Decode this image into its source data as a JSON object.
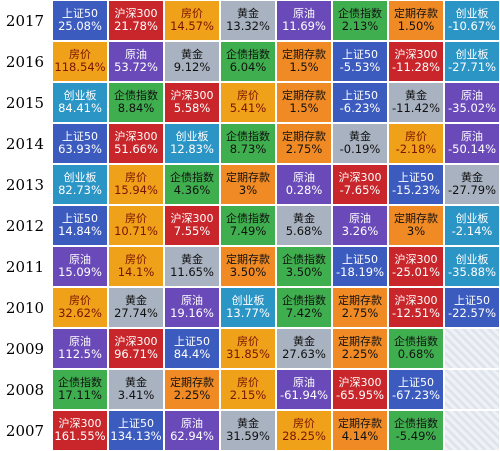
{
  "colors": {
    "上证50": "#3b5bbf",
    "沪深300": "#c8262a",
    "房价": "#f0a11a",
    "黄金": "#a9b2c0",
    "原油": "#6a4ab8",
    "企债指数": "#3fae4e",
    "定期存款": "#f08a24",
    "创业板": "#2b95c6",
    "empty": "#e7ebf2"
  },
  "text_colors": {
    "上证50": "#ffffff",
    "沪深300": "#ffffff",
    "房价": "#7a1300",
    "黄金": "#111111",
    "原油": "#ffffff",
    "企债指数": "#111111",
    "定期存款": "#111111",
    "创业板": "#ffffff"
  },
  "rows": [
    {
      "year": "2017",
      "cells": [
        {
          "name": "上证50",
          "value": "25.08%"
        },
        {
          "name": "沪深300",
          "value": "21.78%"
        },
        {
          "name": "房价",
          "value": "14.57%"
        },
        {
          "name": "黄金",
          "value": "13.32%"
        },
        {
          "name": "原油",
          "value": "11.69%"
        },
        {
          "name": "企债指数",
          "value": "2.13%"
        },
        {
          "name": "定期存款",
          "value": "1.50%"
        },
        {
          "name": "创业板",
          "value": "-10.67%"
        }
      ]
    },
    {
      "year": "2016",
      "cells": [
        {
          "name": "房价",
          "value": "118.54%"
        },
        {
          "name": "原油",
          "value": "53.72%"
        },
        {
          "name": "黄金",
          "value": "9.12%"
        },
        {
          "name": "企债指数",
          "value": "6.04%"
        },
        {
          "name": "定期存款",
          "value": "1.5%"
        },
        {
          "name": "上证50",
          "value": "-5.53%"
        },
        {
          "name": "沪深300",
          "value": "-11.28%"
        },
        {
          "name": "创业板",
          "value": "-27.71%"
        }
      ]
    },
    {
      "year": "2015",
      "cells": [
        {
          "name": "创业板",
          "value": "84.41%"
        },
        {
          "name": "企债指数",
          "value": "8.84%"
        },
        {
          "name": "沪深300",
          "value": "5.58%"
        },
        {
          "name": "房价",
          "value": "5.41%"
        },
        {
          "name": "定期存款",
          "value": "1.5%"
        },
        {
          "name": "上证50",
          "value": "-6.23%"
        },
        {
          "name": "黄金",
          "value": "-11.42%"
        },
        {
          "name": "原油",
          "value": "-35.02%"
        }
      ]
    },
    {
      "year": "2014",
      "cells": [
        {
          "name": "上证50",
          "value": "63.93%"
        },
        {
          "name": "沪深300",
          "value": "51.66%"
        },
        {
          "name": "创业板",
          "value": "12.83%"
        },
        {
          "name": "企债指数",
          "value": "8.73%"
        },
        {
          "name": "定期存款",
          "value": "2.75%"
        },
        {
          "name": "黄金",
          "value": "-0.19%"
        },
        {
          "name": "房价",
          "value": "-2.18%"
        },
        {
          "name": "原油",
          "value": "-50.14%"
        }
      ]
    },
    {
      "year": "2013",
      "cells": [
        {
          "name": "创业板",
          "value": "82.73%"
        },
        {
          "name": "房价",
          "value": "15.94%"
        },
        {
          "name": "企债指数",
          "value": "4.36%"
        },
        {
          "name": "定期存款",
          "value": "3%"
        },
        {
          "name": "原油",
          "value": "0.28%"
        },
        {
          "name": "沪深300",
          "value": "-7.65%"
        },
        {
          "name": "上证50",
          "value": "-15.23%"
        },
        {
          "name": "黄金",
          "value": "-27.79%"
        }
      ]
    },
    {
      "year": "2012",
      "cells": [
        {
          "name": "上证50",
          "value": "14.84%"
        },
        {
          "name": "房价",
          "value": "10.71%"
        },
        {
          "name": "沪深300",
          "value": "7.55%"
        },
        {
          "name": "企债指数",
          "value": "7.49%"
        },
        {
          "name": "黄金",
          "value": "5.68%"
        },
        {
          "name": "原油",
          "value": "3.26%"
        },
        {
          "name": "定期存款",
          "value": "3%"
        },
        {
          "name": "创业板",
          "value": "-2.14%"
        }
      ]
    },
    {
      "year": "2011",
      "cells": [
        {
          "name": "原油",
          "value": "15.09%"
        },
        {
          "name": "房价",
          "value": "14.1%"
        },
        {
          "name": "黄金",
          "value": "11.65%"
        },
        {
          "name": "定期存款",
          "value": "3.50%"
        },
        {
          "name": "企债指数",
          "value": "3.50%"
        },
        {
          "name": "上证50",
          "value": "-18.19%"
        },
        {
          "name": "沪深300",
          "value": "-25.01%"
        },
        {
          "name": "创业板",
          "value": "-35.88%"
        }
      ]
    },
    {
      "year": "2010",
      "cells": [
        {
          "name": "房价",
          "value": "32.62%"
        },
        {
          "name": "黄金",
          "value": "27.74%"
        },
        {
          "name": "原油",
          "value": "19.16%"
        },
        {
          "name": "创业板",
          "value": "13.77%"
        },
        {
          "name": "企债指数",
          "value": "7.42%"
        },
        {
          "name": "定期存款",
          "value": "2.75%"
        },
        {
          "name": "沪深300",
          "value": "-12.51%"
        },
        {
          "name": "上证50",
          "value": "-22.57%"
        }
      ]
    },
    {
      "year": "2009",
      "cells": [
        {
          "name": "原油",
          "value": "112.5%"
        },
        {
          "name": "沪深300",
          "value": "96.71%"
        },
        {
          "name": "上证50",
          "value": "84.4%"
        },
        {
          "name": "房价",
          "value": "31.85%"
        },
        {
          "name": "黄金",
          "value": "27.63%"
        },
        {
          "name": "定期存款",
          "value": "2.25%"
        },
        {
          "name": "企债指数",
          "value": "0.68%"
        },
        null
      ]
    },
    {
      "year": "2008",
      "cells": [
        {
          "name": "企债指数",
          "value": "17.11%"
        },
        {
          "name": "黄金",
          "value": "3.41%"
        },
        {
          "name": "定期存款",
          "value": "2.25%"
        },
        {
          "name": "房价",
          "value": "2.15%"
        },
        {
          "name": "原油",
          "value": "-61.94%"
        },
        {
          "name": "沪深300",
          "value": "-65.95%"
        },
        {
          "name": "上证50",
          "value": "-67.23%"
        },
        null
      ]
    },
    {
      "year": "2007",
      "cells": [
        {
          "name": "沪深300",
          "value": "161.55%"
        },
        {
          "name": "上证50",
          "value": "134.13%"
        },
        {
          "name": "原油",
          "value": "62.94%"
        },
        {
          "name": "黄金",
          "value": "31.59%"
        },
        {
          "name": "房价",
          "value": "28.25%"
        },
        {
          "name": "定期存款",
          "value": "4.14%"
        },
        {
          "name": "企债指数",
          "value": "-5.49%"
        },
        null
      ]
    }
  ]
}
